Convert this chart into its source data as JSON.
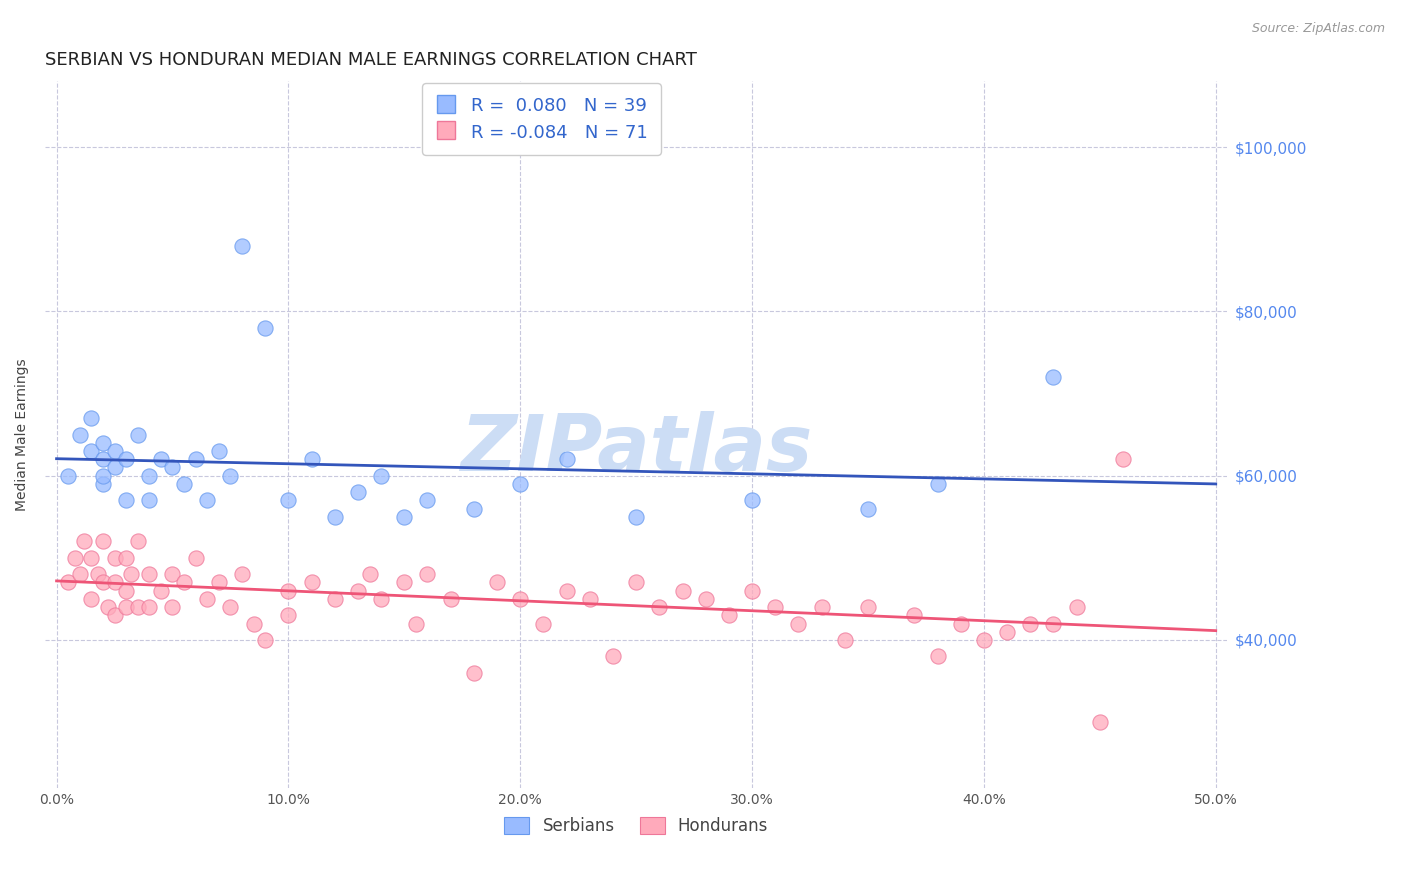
{
  "title": "SERBIAN VS HONDURAN MEDIAN MALE EARNINGS CORRELATION CHART",
  "source": "Source: ZipAtlas.com",
  "ylabel": "Median Male Earnings",
  "xlim": [
    -0.005,
    0.505
  ],
  "ylim": [
    22000,
    108000
  ],
  "xticks": [
    0.0,
    0.1,
    0.2,
    0.3,
    0.4,
    0.5
  ],
  "xticklabels": [
    "0.0%",
    "10.0%",
    "20.0%",
    "30.0%",
    "40.0%",
    "50.0%"
  ],
  "right_yticks": [
    40000,
    60000,
    80000,
    100000
  ],
  "right_yticklabels": [
    "$40,000",
    "$60,000",
    "$80,000",
    "$100,000"
  ],
  "grid_yticks": [
    40000,
    60000,
    80000,
    100000
  ],
  "serbian_r": "0.080",
  "serbian_n": "39",
  "honduran_r": "-0.084",
  "honduran_n": "71",
  "serbian_color": "#99bbff",
  "honduran_color": "#ffaabb",
  "serbian_edge": "#6699ee",
  "honduran_edge": "#ee7799",
  "line_color_serbian": "#3355bb",
  "line_color_honduran": "#ee5577",
  "background_color": "#ffffff",
  "grid_color": "#c8c8dd",
  "watermark_color": "#ccddf5",
  "title_fontsize": 13,
  "axis_label_fontsize": 10,
  "tick_fontsize": 10,
  "right_tick_color": "#5588ee",
  "serbian_scatter_x": [
    0.005,
    0.01,
    0.015,
    0.015,
    0.02,
    0.02,
    0.02,
    0.02,
    0.025,
    0.025,
    0.03,
    0.03,
    0.035,
    0.04,
    0.04,
    0.045,
    0.05,
    0.055,
    0.06,
    0.065,
    0.07,
    0.075,
    0.08,
    0.09,
    0.1,
    0.11,
    0.12,
    0.13,
    0.14,
    0.15,
    0.16,
    0.18,
    0.2,
    0.22,
    0.25,
    0.3,
    0.35,
    0.38,
    0.43
  ],
  "serbian_scatter_y": [
    60000,
    65000,
    63000,
    67000,
    64000,
    62000,
    59000,
    60000,
    63000,
    61000,
    62000,
    57000,
    65000,
    60000,
    57000,
    62000,
    61000,
    59000,
    62000,
    57000,
    63000,
    60000,
    88000,
    78000,
    57000,
    62000,
    55000,
    58000,
    60000,
    55000,
    57000,
    56000,
    59000,
    62000,
    55000,
    57000,
    56000,
    59000,
    72000
  ],
  "honduran_scatter_x": [
    0.005,
    0.008,
    0.01,
    0.012,
    0.015,
    0.015,
    0.018,
    0.02,
    0.02,
    0.022,
    0.025,
    0.025,
    0.025,
    0.03,
    0.03,
    0.03,
    0.032,
    0.035,
    0.035,
    0.04,
    0.04,
    0.045,
    0.05,
    0.05,
    0.055,
    0.06,
    0.065,
    0.07,
    0.075,
    0.08,
    0.085,
    0.09,
    0.1,
    0.1,
    0.11,
    0.12,
    0.13,
    0.135,
    0.14,
    0.15,
    0.155,
    0.16,
    0.17,
    0.18,
    0.19,
    0.2,
    0.21,
    0.22,
    0.23,
    0.24,
    0.25,
    0.26,
    0.27,
    0.28,
    0.29,
    0.3,
    0.31,
    0.32,
    0.33,
    0.34,
    0.35,
    0.37,
    0.38,
    0.39,
    0.4,
    0.41,
    0.42,
    0.43,
    0.44,
    0.45,
    0.46
  ],
  "honduran_scatter_y": [
    47000,
    50000,
    48000,
    52000,
    50000,
    45000,
    48000,
    52000,
    47000,
    44000,
    50000,
    47000,
    43000,
    50000,
    46000,
    44000,
    48000,
    52000,
    44000,
    48000,
    44000,
    46000,
    48000,
    44000,
    47000,
    50000,
    45000,
    47000,
    44000,
    48000,
    42000,
    40000,
    46000,
    43000,
    47000,
    45000,
    46000,
    48000,
    45000,
    47000,
    42000,
    48000,
    45000,
    36000,
    47000,
    45000,
    42000,
    46000,
    45000,
    38000,
    47000,
    44000,
    46000,
    45000,
    43000,
    46000,
    44000,
    42000,
    44000,
    40000,
    44000,
    43000,
    38000,
    42000,
    40000,
    41000,
    42000,
    42000,
    44000,
    30000,
    62000
  ]
}
